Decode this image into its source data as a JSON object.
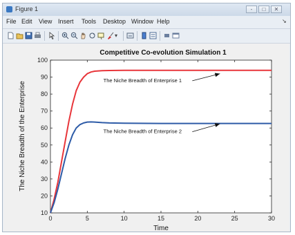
{
  "window": {
    "title": "Figure 1",
    "controls": [
      "-",
      "□",
      "✕"
    ]
  },
  "menu": {
    "items": [
      "File",
      "Edit",
      "View",
      "Insert",
      "Tools",
      "Desktop",
      "Window",
      "Help"
    ]
  },
  "toolbar": {
    "icons": [
      "new-file-icon",
      "open-folder-icon",
      "save-icon",
      "print-icon",
      "pointer-icon",
      "zoom-in-icon",
      "zoom-out-icon",
      "pan-icon",
      "rotate-icon",
      "data-cursor-icon",
      "brush-icon",
      "link-icon",
      "colorbar-icon",
      "legend-icon",
      "hide-tools-icon",
      "show-tools-icon"
    ]
  },
  "colors": {
    "series1": "#e8353a",
    "series2": "#2d5ba7",
    "axes": "#262626",
    "grid": "#ffffff"
  },
  "chart_data": {
    "type": "line",
    "title": "Competitive Co-evolution Simulation 1",
    "xlabel": "Time",
    "ylabel": "The Niche Breadth of the Enterprise",
    "xlim": [
      0,
      30
    ],
    "ylim": [
      10,
      100
    ],
    "xticks": [
      0,
      5,
      10,
      15,
      20,
      25,
      30
    ],
    "yticks": [
      10,
      20,
      30,
      40,
      50,
      60,
      70,
      80,
      90,
      100
    ],
    "grid": false,
    "series": [
      {
        "color": "#e8353a",
        "x": [
          0,
          0.5,
          1,
          1.5,
          2,
          2.5,
          3,
          3.5,
          4,
          4.5,
          5,
          5.5,
          6,
          7,
          8,
          10,
          15,
          20,
          25,
          30
        ],
        "y": [
          10,
          18,
          28,
          40,
          52,
          64,
          74,
          82,
          87,
          90,
          92,
          93,
          93.5,
          93.8,
          93.9,
          94,
          94,
          94,
          94,
          94
        ]
      },
      {
        "color": "#2d5ba7",
        "x": [
          0,
          0.5,
          1,
          1.5,
          2,
          2.5,
          3,
          3.5,
          4,
          4.5,
          5,
          5.5,
          6,
          7,
          8,
          10,
          15,
          20,
          25,
          30
        ],
        "y": [
          10,
          16,
          24,
          33,
          42,
          50,
          56,
          60,
          62,
          63,
          63.5,
          63.6,
          63.5,
          63.2,
          63,
          62.8,
          62.7,
          62.7,
          62.7,
          62.7
        ]
      }
    ],
    "annotations": [
      {
        "text": "The Niche Breadth of Enterprise 1",
        "x": 12.5,
        "y": 87,
        "arrow_to": [
          23,
          92
        ]
      },
      {
        "text": "The Niche Breadth of Enterprise 2",
        "x": 12.5,
        "y": 57,
        "arrow_to": [
          23,
          62.5
        ]
      }
    ]
  }
}
